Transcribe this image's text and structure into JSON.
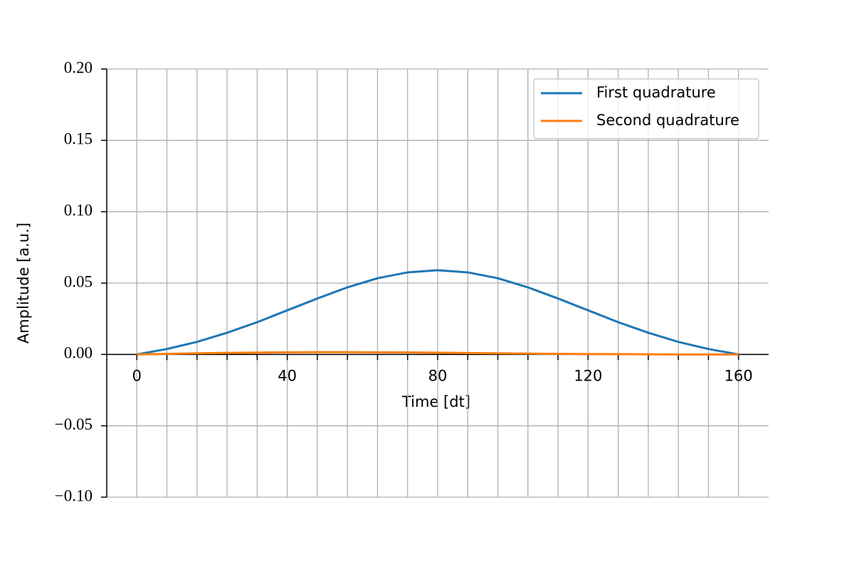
{
  "chart_data": {
    "type": "line",
    "xlabel": "Time [dt]",
    "ylabel": "Amplitude [a.u.]",
    "x": [
      0,
      8,
      16,
      24,
      32,
      40,
      48,
      56,
      64,
      72,
      80,
      88,
      96,
      104,
      112,
      120,
      128,
      136,
      144,
      152,
      160
    ],
    "series": [
      {
        "name": "First quadrature",
        "color": "#1f77b4",
        "values": [
          0,
          0.0038,
          0.0088,
          0.0152,
          0.0226,
          0.0309,
          0.0392,
          0.047,
          0.0534,
          0.0575,
          0.059,
          0.0575,
          0.0534,
          0.047,
          0.0392,
          0.0309,
          0.0226,
          0.0152,
          0.0088,
          0.0038,
          0
        ]
      },
      {
        "name": "Second quadrature",
        "color": "#ff7f0e",
        "values": [
          0,
          0.0004,
          0.0008,
          0.0011,
          0.0013,
          0.0015,
          0.0016,
          0.0016,
          0.0015,
          0.0014,
          0.0012,
          0.001,
          0.0008,
          0.0006,
          0.0004,
          0.0003,
          0.0002,
          0.0001,
          0,
          0,
          0
        ]
      }
    ],
    "xlim": [
      -8,
      168
    ],
    "xticks": [
      0,
      40,
      80,
      120,
      160
    ],
    "xminor_ticks": [
      8,
      16,
      24,
      32,
      48,
      56,
      64,
      72,
      88,
      96,
      104,
      112,
      128,
      136,
      144,
      152
    ],
    "ylim": [
      -0.1,
      0.2
    ],
    "yticks": [
      {
        "value": -0.1,
        "label": "−0.10"
      },
      {
        "value": -0.05,
        "label": "−0.05"
      },
      {
        "value": 0,
        "label": "0.00"
      },
      {
        "value": 0.05,
        "label": "0.05"
      },
      {
        "value": 0.1,
        "label": "0.10"
      },
      {
        "value": 0.15,
        "label": "0.15"
      },
      {
        "value": 0.2,
        "label": "0.20"
      }
    ],
    "grid": true,
    "legend": "upper right"
  }
}
